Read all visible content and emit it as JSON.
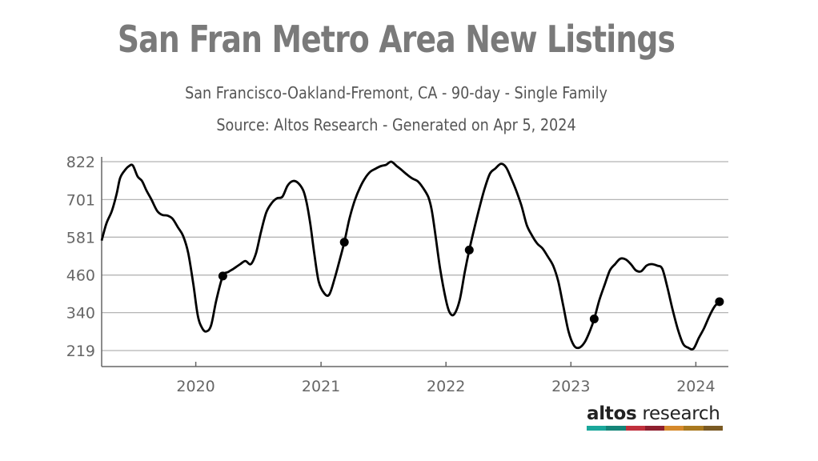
{
  "header": {
    "title": "San Fran Metro Area New Listings",
    "subtitle": "San Francisco-Oakland-Fremont, CA - 90-day - Single Family",
    "source": "Source: Altos Research - Generated on Apr 5, 2024"
  },
  "logo": {
    "word_bold": "altos",
    "word_regular": "research",
    "bar_colors": [
      "#1aa79b",
      "#148478",
      "#c0303c",
      "#8e1f2e",
      "#d6892b",
      "#a9791f",
      "#7a5a23"
    ]
  },
  "colors": {
    "line": "#000000",
    "grid": "#b5b5b5",
    "axis_text": "#666666"
  },
  "chart_data": {
    "type": "line",
    "title": "San Fran Metro Area New Listings",
    "xlabel": "",
    "ylabel": "",
    "ylim": [
      219,
      822
    ],
    "xlim": [
      "2019-04-01",
      "2024-04-05"
    ],
    "y_ticks": [
      822,
      701,
      581,
      460,
      340,
      219
    ],
    "x_ticks": [
      {
        "label": "2020",
        "date": "2020-01-01"
      },
      {
        "label": "2021",
        "date": "2021-01-01"
      },
      {
        "label": "2022",
        "date": "2022-01-01"
      },
      {
        "label": "2023",
        "date": "2023-01-01"
      },
      {
        "label": "2024",
        "date": "2024-01-01"
      }
    ],
    "grid": true,
    "series": [
      {
        "points": [
          [
            "2019-04-01",
            570
          ],
          [
            "2019-04-15",
            625
          ],
          [
            "2019-05-01",
            665
          ],
          [
            "2019-05-15",
            720
          ],
          [
            "2019-05-25",
            770
          ],
          [
            "2019-06-08",
            795
          ],
          [
            "2019-06-20",
            808
          ],
          [
            "2019-07-01",
            810
          ],
          [
            "2019-07-15",
            775
          ],
          [
            "2019-07-28",
            760
          ],
          [
            "2019-08-10",
            730
          ],
          [
            "2019-08-25",
            700
          ],
          [
            "2019-09-10",
            665
          ],
          [
            "2019-09-25",
            652
          ],
          [
            "2019-10-10",
            650
          ],
          [
            "2019-10-25",
            640
          ],
          [
            "2019-11-10",
            612
          ],
          [
            "2019-11-25",
            585
          ],
          [
            "2019-12-10",
            530
          ],
          [
            "2019-12-25",
            430
          ],
          [
            "2020-01-07",
            330
          ],
          [
            "2020-01-20",
            290
          ],
          [
            "2020-02-01",
            280
          ],
          [
            "2020-02-15",
            300
          ],
          [
            "2020-03-01",
            380
          ],
          [
            "2020-03-20",
            457
          ],
          [
            "2020-04-05",
            470
          ],
          [
            "2020-04-20",
            480
          ],
          [
            "2020-05-10",
            495
          ],
          [
            "2020-05-25",
            505
          ],
          [
            "2020-06-10",
            495
          ],
          [
            "2020-06-25",
            530
          ],
          [
            "2020-07-10",
            600
          ],
          [
            "2020-07-25",
            660
          ],
          [
            "2020-08-10",
            690
          ],
          [
            "2020-08-25",
            705
          ],
          [
            "2020-09-10",
            710
          ],
          [
            "2020-09-25",
            745
          ],
          [
            "2020-10-10",
            760
          ],
          [
            "2020-10-25",
            755
          ],
          [
            "2020-11-10",
            730
          ],
          [
            "2020-11-20",
            690
          ],
          [
            "2020-12-01",
            620
          ],
          [
            "2020-12-12",
            530
          ],
          [
            "2020-12-25",
            440
          ],
          [
            "2021-01-10",
            402
          ],
          [
            "2021-01-25",
            398
          ],
          [
            "2021-02-10",
            450
          ],
          [
            "2021-02-25",
            510
          ],
          [
            "2021-03-10",
            565
          ],
          [
            "2021-03-25",
            640
          ],
          [
            "2021-04-10",
            700
          ],
          [
            "2021-04-25",
            740
          ],
          [
            "2021-05-10",
            770
          ],
          [
            "2021-05-25",
            790
          ],
          [
            "2021-06-10",
            800
          ],
          [
            "2021-06-25",
            808
          ],
          [
            "2021-07-10",
            812
          ],
          [
            "2021-07-25",
            822
          ],
          [
            "2021-08-10",
            808
          ],
          [
            "2021-08-25",
            795
          ],
          [
            "2021-09-10",
            780
          ],
          [
            "2021-09-25",
            768
          ],
          [
            "2021-10-10",
            760
          ],
          [
            "2021-10-25",
            740
          ],
          [
            "2021-11-10",
            710
          ],
          [
            "2021-11-20",
            670
          ],
          [
            "2021-12-01",
            590
          ],
          [
            "2021-12-15",
            480
          ],
          [
            "2022-01-01",
            380
          ],
          [
            "2022-01-12",
            340
          ],
          [
            "2022-01-25",
            335
          ],
          [
            "2022-02-10",
            380
          ],
          [
            "2022-02-25",
            470
          ],
          [
            "2022-03-10",
            540
          ],
          [
            "2022-03-25",
            610
          ],
          [
            "2022-04-10",
            680
          ],
          [
            "2022-04-25",
            740
          ],
          [
            "2022-05-10",
            785
          ],
          [
            "2022-05-25",
            800
          ],
          [
            "2022-06-10",
            815
          ],
          [
            "2022-06-25",
            805
          ],
          [
            "2022-07-10",
            770
          ],
          [
            "2022-07-25",
            730
          ],
          [
            "2022-08-10",
            680
          ],
          [
            "2022-08-25",
            620
          ],
          [
            "2022-09-10",
            585
          ],
          [
            "2022-09-25",
            560
          ],
          [
            "2022-10-10",
            545
          ],
          [
            "2022-10-25",
            520
          ],
          [
            "2022-11-10",
            490
          ],
          [
            "2022-11-25",
            440
          ],
          [
            "2022-12-10",
            360
          ],
          [
            "2022-12-25",
            280
          ],
          [
            "2023-01-10",
            235
          ],
          [
            "2023-01-25",
            228
          ],
          [
            "2023-02-10",
            245
          ],
          [
            "2023-02-25",
            280
          ],
          [
            "2023-03-10",
            320
          ],
          [
            "2023-03-25",
            380
          ],
          [
            "2023-04-10",
            430
          ],
          [
            "2023-04-25",
            475
          ],
          [
            "2023-05-10",
            495
          ],
          [
            "2023-05-25",
            512
          ],
          [
            "2023-06-10",
            510
          ],
          [
            "2023-06-25",
            495
          ],
          [
            "2023-07-10",
            475
          ],
          [
            "2023-07-25",
            472
          ],
          [
            "2023-08-10",
            490
          ],
          [
            "2023-08-25",
            495
          ],
          [
            "2023-09-10",
            490
          ],
          [
            "2023-09-25",
            480
          ],
          [
            "2023-10-10",
            420
          ],
          [
            "2023-10-25",
            350
          ],
          [
            "2023-11-10",
            285
          ],
          [
            "2023-11-25",
            240
          ],
          [
            "2023-12-10",
            228
          ],
          [
            "2023-12-25",
            225
          ],
          [
            "2024-01-10",
            260
          ],
          [
            "2024-01-25",
            290
          ],
          [
            "2024-02-10",
            330
          ],
          [
            "2024-02-25",
            360
          ],
          [
            "2024-03-10",
            375
          ]
        ]
      }
    ],
    "markers": [
      [
        "2020-03-20",
        457
      ],
      [
        "2021-03-10",
        565
      ],
      [
        "2022-03-10",
        540
      ],
      [
        "2023-03-10",
        320
      ],
      [
        "2024-03-10",
        375
      ]
    ]
  }
}
